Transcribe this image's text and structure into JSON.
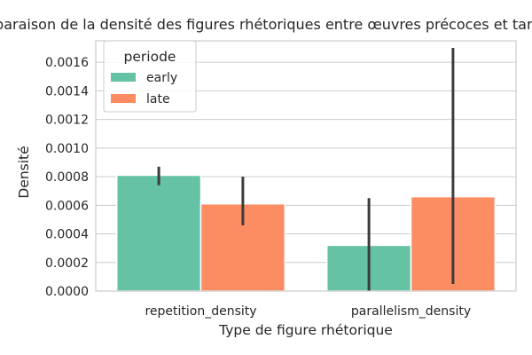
{
  "chart_data": {
    "type": "bar",
    "title": "Comparaison de la densité des figures rhétoriques entre œuvres précoces et tardives",
    "xlabel": "Type de figure rhétorique",
    "ylabel": "Densité",
    "categories": [
      "repetition_density",
      "parallelism_density"
    ],
    "ylim": [
      0,
      0.00175
    ],
    "yticks": [
      "0.0000",
      "0.0002",
      "0.0004",
      "0.0006",
      "0.0008",
      "0.0010",
      "0.0012",
      "0.0014",
      "0.0016"
    ],
    "ytick_values": [
      0,
      0.0002,
      0.0004,
      0.0006,
      0.0008,
      0.001,
      0.0012,
      0.0014,
      0.0016
    ],
    "grid": "horizontal",
    "legend": {
      "title": "periode",
      "placement": "top-left"
    },
    "series": [
      {
        "name": "early",
        "color": "#66c2a5",
        "values": [
          0.00081,
          0.00032
        ],
        "err_low": [
          0.00074,
          0.0
        ],
        "err_high": [
          0.00087,
          0.00065
        ]
      },
      {
        "name": "late",
        "color": "#fc8d62",
        "values": [
          0.00061,
          0.00066
        ],
        "err_low": [
          0.00046,
          5e-05
        ],
        "err_high": [
          0.0008,
          0.0017
        ]
      }
    ]
  }
}
